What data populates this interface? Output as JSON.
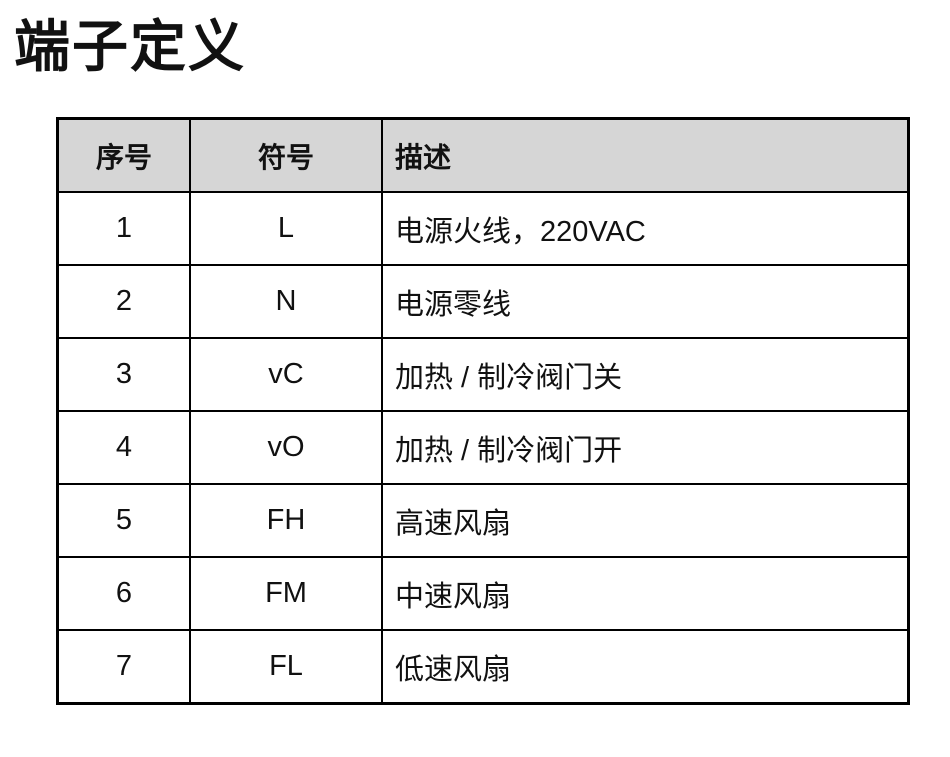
{
  "title": "端子定义",
  "table": {
    "headers": [
      "序号",
      "符号",
      "描述"
    ],
    "rows": [
      {
        "no": "1",
        "symbol": "L",
        "desc": "电源火线，220VAC"
      },
      {
        "no": "2",
        "symbol": "N",
        "desc": "电源零线"
      },
      {
        "no": "3",
        "symbol": "vC",
        "desc": "加热 / 制冷阀门关"
      },
      {
        "no": "4",
        "symbol": "vO",
        "desc": "加热 / 制冷阀门开"
      },
      {
        "no": "5",
        "symbol": "FH",
        "desc": "高速风扇"
      },
      {
        "no": "6",
        "symbol": "FM",
        "desc": "中速风扇"
      },
      {
        "no": "7",
        "symbol": "FL",
        "desc": "低速风扇"
      }
    ]
  }
}
